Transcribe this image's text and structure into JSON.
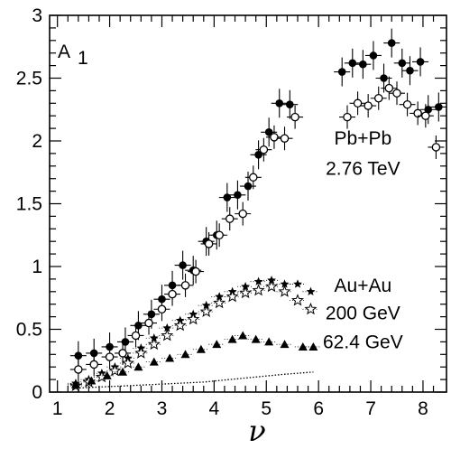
{
  "chart_data": {
    "type": "scatter",
    "xlabel": "ν",
    "ylabel": "A",
    "ylabel_subscript": "1",
    "xlim": [
      0.85,
      8.45
    ],
    "ylim": [
      0,
      3
    ],
    "x_ticks": [
      "1",
      "2",
      "3",
      "4",
      "5",
      "6",
      "7",
      "8"
    ],
    "y_ticks": [
      "0",
      "0.5",
      "1",
      "1.5",
      "2",
      "2.5",
      "3"
    ],
    "grid": false,
    "annotations": [
      {
        "text": "Pb+Pb",
        "at": [
          6.85,
          1.97
        ]
      },
      {
        "text": "2.76 TeV",
        "at": [
          6.85,
          1.73
        ]
      },
      {
        "text": "Au+Au",
        "at": [
          6.85,
          0.8
        ]
      },
      {
        "text": "200 GeV",
        "at": [
          6.85,
          0.58
        ]
      },
      {
        "text": "62.4 GeV",
        "at": [
          6.85,
          0.35
        ]
      }
    ],
    "series": [
      {
        "marker": "filled-circle",
        "x": [
          1.4,
          1.7,
          2.0,
          2.3,
          2.55,
          2.8,
          3.0,
          3.2,
          3.4,
          3.6,
          3.85,
          4.05,
          4.25,
          4.45,
          4.65,
          4.85,
          5.05,
          5.25,
          5.45,
          6.45,
          6.65,
          6.85,
          7.05,
          7.25,
          7.4,
          7.6,
          7.75,
          7.95,
          8.1,
          8.3
        ],
        "y": [
          0.29,
          0.31,
          0.36,
          0.4,
          0.53,
          0.62,
          0.74,
          0.85,
          1.01,
          0.97,
          1.2,
          1.25,
          1.55,
          1.57,
          1.64,
          1.89,
          2.07,
          2.3,
          2.29,
          2.55,
          2.62,
          2.61,
          2.68,
          2.5,
          2.78,
          2.62,
          2.56,
          2.63,
          2.25,
          2.27
        ]
      },
      {
        "marker": "open-circle",
        "x": [
          1.4,
          1.7,
          2.0,
          2.25,
          2.5,
          2.75,
          3.0,
          3.2,
          3.45,
          3.65,
          3.9,
          4.1,
          4.3,
          4.55,
          4.75,
          4.95,
          5.15,
          5.35,
          5.55,
          6.55,
          6.75,
          6.95,
          7.15,
          7.35,
          7.5,
          7.7,
          7.9,
          8.05,
          8.25
        ],
        "y": [
          0.18,
          0.22,
          0.28,
          0.31,
          0.45,
          0.55,
          0.66,
          0.78,
          0.85,
          0.96,
          1.18,
          1.25,
          1.38,
          1.42,
          1.71,
          1.93,
          2.03,
          2.02,
          2.19,
          2.19,
          2.3,
          2.28,
          2.34,
          2.42,
          2.38,
          2.29,
          2.22,
          2.2,
          1.95
        ]
      },
      {
        "marker": "filled-star",
        "x": [
          1.35,
          1.6,
          1.85,
          2.1,
          2.35,
          2.6,
          2.85,
          3.1,
          3.35,
          3.6,
          3.85,
          4.1,
          4.35,
          4.6,
          4.85,
          5.1,
          5.35,
          5.6,
          5.85
        ],
        "y": [
          0.07,
          0.1,
          0.15,
          0.2,
          0.27,
          0.35,
          0.43,
          0.51,
          0.57,
          0.62,
          0.69,
          0.76,
          0.8,
          0.84,
          0.88,
          0.89,
          0.86,
          0.86,
          0.8
        ]
      },
      {
        "marker": "open-star",
        "x": [
          1.35,
          1.6,
          1.85,
          2.1,
          2.35,
          2.6,
          2.85,
          3.1,
          3.35,
          3.6,
          3.85,
          4.1,
          4.35,
          4.6,
          4.85,
          5.1,
          5.35,
          5.6,
          5.85
        ],
        "y": [
          0.05,
          0.08,
          0.12,
          0.17,
          0.23,
          0.31,
          0.38,
          0.45,
          0.53,
          0.58,
          0.64,
          0.71,
          0.76,
          0.79,
          0.81,
          0.84,
          0.8,
          0.73,
          0.66
        ]
      },
      {
        "marker": "filled-triangle",
        "x": [
          1.35,
          1.65,
          1.95,
          2.25,
          2.55,
          2.85,
          3.15,
          3.45,
          3.75,
          4.05,
          4.35,
          4.55,
          4.8,
          5.05,
          5.35,
          5.7,
          5.9
        ],
        "y": [
          0.06,
          0.09,
          0.13,
          0.16,
          0.2,
          0.24,
          0.27,
          0.3,
          0.34,
          0.38,
          0.42,
          0.45,
          0.42,
          0.4,
          0.38,
          0.36,
          0.36
        ]
      },
      {
        "marker": "dotted-line",
        "x": [
          1.3,
          1.8,
          2.3,
          2.8,
          3.3,
          3.8,
          4.3,
          4.8,
          5.3,
          5.9
        ],
        "y": [
          0.03,
          0.04,
          0.05,
          0.06,
          0.07,
          0.08,
          0.1,
          0.12,
          0.14,
          0.16
        ]
      }
    ]
  }
}
